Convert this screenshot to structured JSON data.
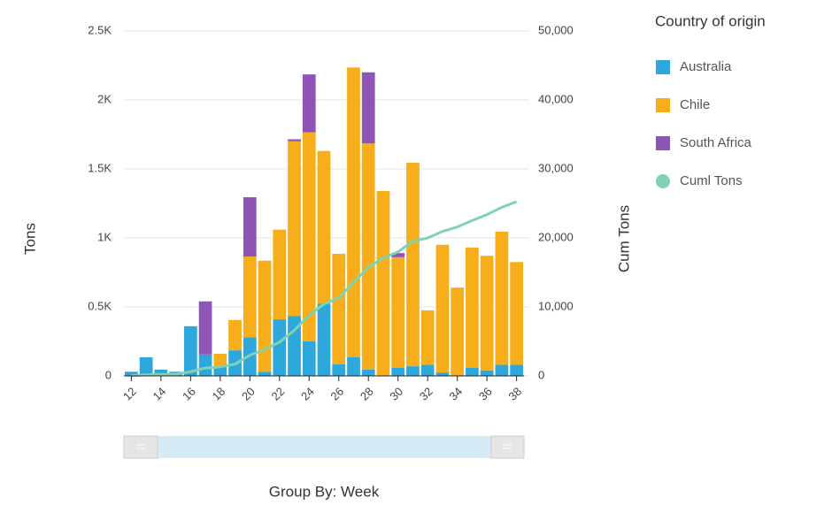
{
  "chart_data": {
    "type": "bar",
    "stacked": true,
    "ylabel": "Tons",
    "y2label": "Cum Tons",
    "xlabel": "Group By: Week",
    "legend_title": "Country of origin",
    "legend": "right",
    "grid": true,
    "categories": [
      "12",
      null,
      "14",
      null,
      "16",
      null,
      "18",
      null,
      "20",
      null,
      "22",
      null,
      "24",
      null,
      "26",
      null,
      "28",
      null,
      "30",
      null,
      "32",
      null,
      "34",
      null,
      "36",
      null,
      "38"
    ],
    "series": [
      {
        "name": "Australia",
        "color": "#2ea8dc",
        "values": [
          30,
          135,
          45,
          30,
          360,
          155,
          65,
          185,
          280,
          30,
          410,
          435,
          250,
          525,
          85,
          135,
          45,
          0,
          60,
          70,
          80,
          25,
          0,
          60,
          40,
          80,
          80
        ]
      },
      {
        "name": "Chile",
        "color": "#f7ae1a",
        "values": [
          0,
          0,
          0,
          0,
          0,
          0,
          95,
          220,
          585,
          805,
          650,
          1265,
          1515,
          1105,
          800,
          2100,
          1640,
          1340,
          800,
          1475,
          395,
          925,
          640,
          870,
          830,
          965,
          745
        ]
      },
      {
        "name": "South Africa",
        "color": "#8e55b7",
        "values": [
          0,
          0,
          0,
          0,
          0,
          385,
          0,
          0,
          430,
          0,
          0,
          15,
          420,
          0,
          0,
          0,
          515,
          0,
          30,
          0,
          0,
          0,
          0,
          0,
          0,
          0,
          0
        ]
      },
      {
        "name": "Cuml Tons",
        "color": "#7fd3b0",
        "type": "line",
        "axis": "y2",
        "values": [
          30,
          165,
          210,
          240,
          600,
          1140,
          1300,
          1705,
          3000,
          3835,
          4895,
          6610,
          8795,
          10425,
          11310,
          13545,
          15745,
          17085,
          17975,
          19520,
          19995,
          20945,
          21585,
          22515,
          23385,
          24430,
          25255
        ]
      }
    ],
    "ylim": [
      0,
      2500
    ],
    "yticks": [
      0,
      {
        "value": 500,
        "label": "0.5K"
      },
      {
        "value": 1000,
        "label": "1K"
      },
      {
        "value": 1500,
        "label": "1.5K"
      },
      {
        "value": 2000,
        "label": "2K"
      },
      {
        "value": 2500,
        "label": "2.5K"
      }
    ],
    "y2lim": [
      0,
      50000
    ],
    "y2ticks": [
      0,
      {
        "value": 10000,
        "label": "10,000"
      },
      {
        "value": 20000,
        "label": "20,000"
      },
      {
        "value": 30000,
        "label": "30,000"
      },
      {
        "value": 40000,
        "label": "40,000"
      },
      {
        "value": 50000,
        "label": "50,000"
      }
    ]
  }
}
